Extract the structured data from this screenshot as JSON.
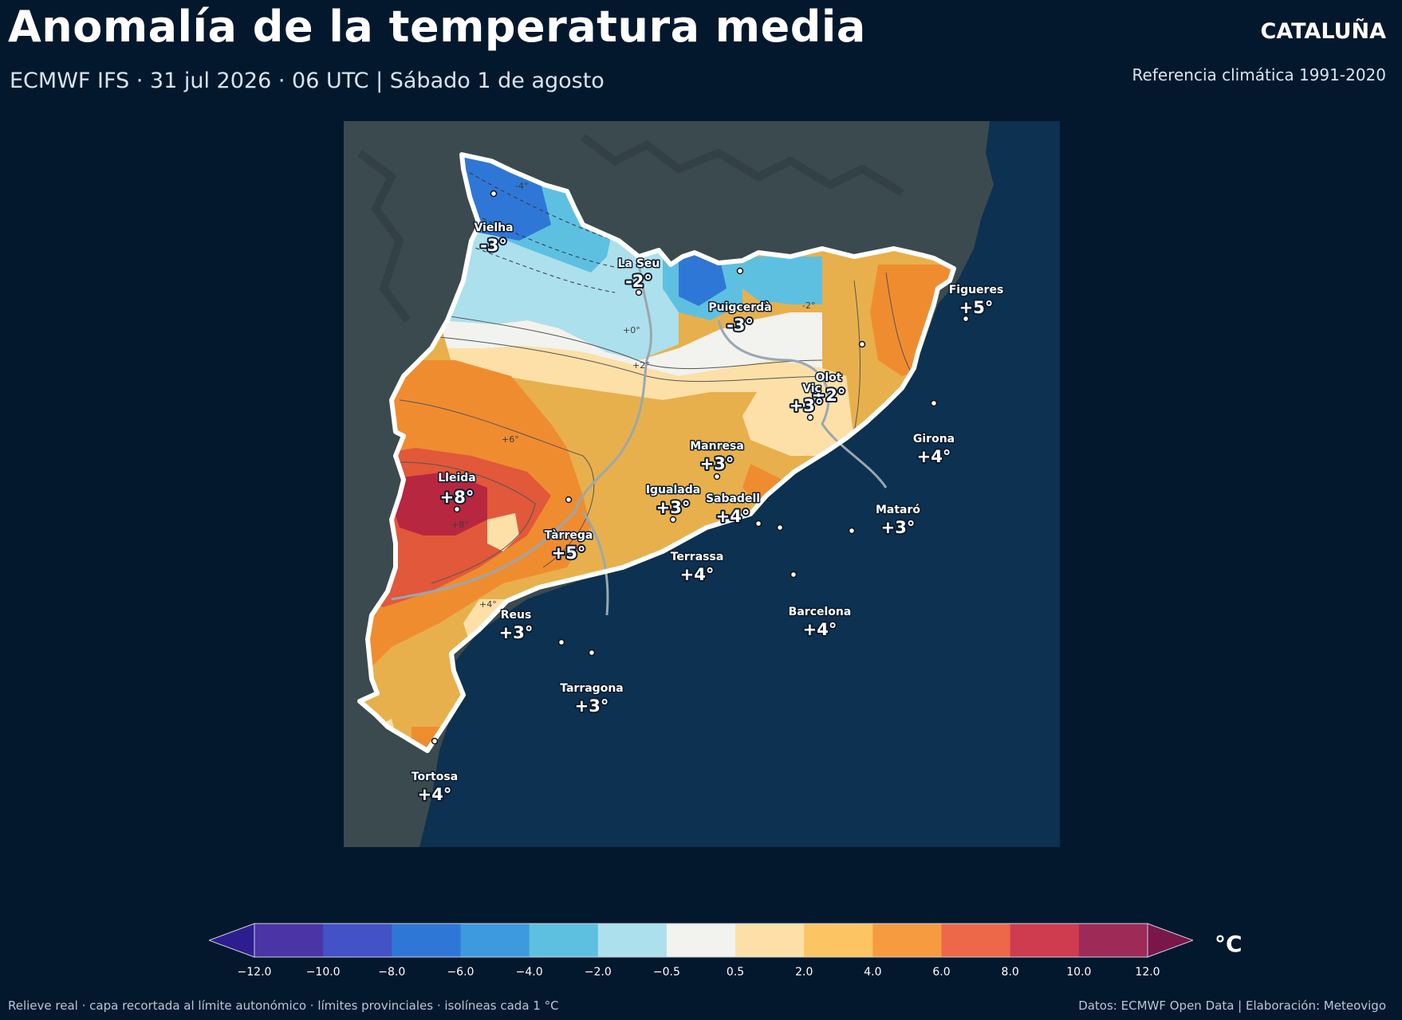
{
  "header": {
    "title": "Anomalía de la temperatura media",
    "subtitle": "ECMWF IFS · 31 jul 2026 · 06 UTC  |  Sábado 1 de agosto",
    "region": "CATALUÑA",
    "reference": "Referencia climática 1991-2020"
  },
  "map": {
    "colors": {
      "land_relief": "#3b4a4e",
      "sea": "#0d3150",
      "border": "#ffffff",
      "province_line": "#9aa7b0"
    },
    "cities": [
      {
        "name": "Vielha",
        "value": "-3°"
      },
      {
        "name": "La Seu",
        "value": "-2°"
      },
      {
        "name": "Puigcerdà",
        "value": "-3°"
      },
      {
        "name": "Figueres",
        "value": "+5°"
      },
      {
        "name": "Olot",
        "value": "+2°"
      },
      {
        "name": "Vic",
        "value": "+3°"
      },
      {
        "name": "Girona",
        "value": "+4°"
      },
      {
        "name": "Manresa",
        "value": "+3°"
      },
      {
        "name": "Lleida",
        "value": "+8°"
      },
      {
        "name": "Igualada",
        "value": "+3°"
      },
      {
        "name": "Sabadell",
        "value": "+4°"
      },
      {
        "name": "Mataró",
        "value": "+3°"
      },
      {
        "name": "Tàrrega",
        "value": "+5°"
      },
      {
        "name": "Terrassa",
        "value": "+4°"
      },
      {
        "name": "Reus",
        "value": "+3°"
      },
      {
        "name": "Barcelona",
        "value": "+4°"
      },
      {
        "name": "Tarragona",
        "value": "+3°"
      },
      {
        "name": "Tortosa",
        "value": "+4°"
      }
    ],
    "isoline_labels": [
      "-4°",
      "-2°",
      "+0°",
      "+2°",
      "+4°",
      "+6°",
      "+8°"
    ]
  },
  "colorbar": {
    "unit": "°C",
    "ticks": [
      "−12.0",
      "−10.0",
      "−8.0",
      "−6.0",
      "−4.0",
      "−2.0",
      "−0.5",
      "0.5",
      "2.0",
      "4.0",
      "6.0",
      "8.0",
      "10.0",
      "12.0"
    ],
    "colors": [
      "#2d1e8f",
      "#4b34a6",
      "#4352c6",
      "#2f77d6",
      "#3d9ade",
      "#5ec0e0",
      "#ace0ec",
      "#f2f2ee",
      "#fde0a8",
      "#fcc462",
      "#f79b40",
      "#ec6848",
      "#cf3c4f",
      "#9e2a57",
      "#7a174a"
    ]
  },
  "footer": {
    "left": "Relieve real · capa recortada al límite autonómico · límites provinciales · isolíneas cada 1 °C",
    "right": "Datos: ECMWF Open Data | Elaboración: Meteovigo"
  }
}
